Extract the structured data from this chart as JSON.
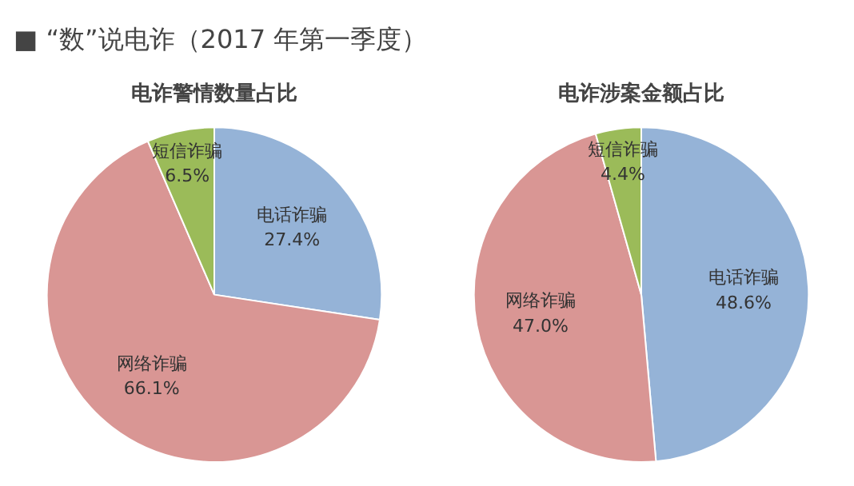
{
  "chart_data": [
    {
      "type": "other",
      "title": "■ “数”说电诈（2017 年第一季度）"
    },
    {
      "type": "pie",
      "title": "电诈警情数量占比",
      "categories": [
        "电话诈骗",
        "网络诈骗",
        "短信诈骗"
      ],
      "values": [
        27.4,
        66.1,
        6.5
      ],
      "colors": [
        "#95b3d7",
        "#d99694",
        "#9bbb59"
      ],
      "value_labels": [
        "27.4%",
        "66.1%",
        "6.5%"
      ]
    },
    {
      "type": "pie",
      "title": "电诈涉案金额占比",
      "categories": [
        "电话诈骗",
        "网络诈骗",
        "短信诈骗"
      ],
      "values": [
        48.6,
        47.0,
        4.4
      ],
      "colors": [
        "#95b3d7",
        "#d99694",
        "#9bbb59"
      ],
      "value_labels": [
        "48.6%",
        "47.0%",
        "4.4%"
      ]
    }
  ]
}
